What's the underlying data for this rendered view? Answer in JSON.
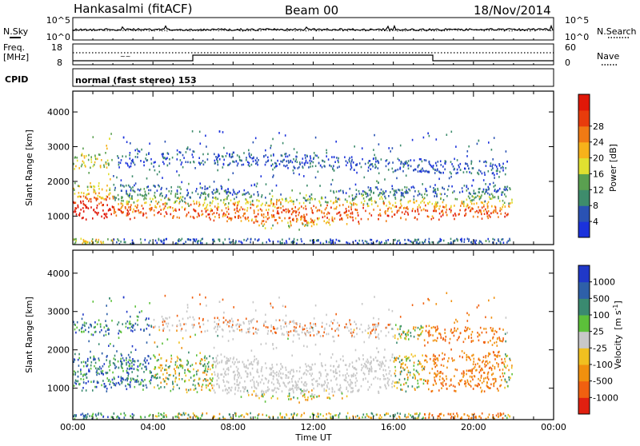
{
  "header": {
    "station": "Hankasalmi (fitACF)",
    "beam": "Beam 00",
    "date": "18/Nov/2014"
  },
  "sky_panel": {
    "left_label": "N.Sky",
    "left_ticks": [
      "10^5",
      "10^0"
    ],
    "right_ticks": [
      "10^5",
      "10^0"
    ],
    "right_label": "N.Search"
  },
  "freq_panel": {
    "left_label_1": "Freq.",
    "left_label_2": "[MHz]",
    "left_ticks": [
      "18",
      "8"
    ],
    "right_ticks": [
      "60",
      "0"
    ],
    "right_label": "Nave"
  },
  "cpid": {
    "label": "CPID",
    "text": "normal (fast stereo) 153"
  },
  "chart_data": [
    {
      "type": "heatmap",
      "title": "",
      "xlabel": "Time UT",
      "ylabel": "Slant Range [km]",
      "x_ticks": [
        "00:00",
        "04:00",
        "08:00",
        "12:00",
        "16:00",
        "20:00",
        "00:00"
      ],
      "xlim_hours": [
        0,
        24
      ],
      "ylim": [
        180,
        4600
      ],
      "y_ticks": [
        1000,
        2000,
        3000,
        4000
      ],
      "colorbar": {
        "label": "Power [dB]",
        "ticks": [
          "4",
          "8",
          "12",
          "16",
          "20",
          "24",
          "28"
        ],
        "range": [
          0,
          30
        ]
      }
    },
    {
      "type": "heatmap",
      "title": "",
      "xlabel": "Time UT",
      "ylabel": "Slant Range [km]",
      "x_ticks": [
        "00:00",
        "04:00",
        "08:00",
        "12:00",
        "16:00",
        "20:00",
        "00:00"
      ],
      "xlim_hours": [
        0,
        24
      ],
      "ylim": [
        180,
        4600
      ],
      "y_ticks": [
        1000,
        2000,
        3000,
        4000
      ],
      "colorbar": {
        "label": "Velocity [m s-1]",
        "label_main": "Velocity",
        "label_unit": "[m s",
        "label_sup": "-1",
        "label_end": "]",
        "ticks": [
          "1000",
          "500",
          "100",
          "25",
          "-25",
          "-100",
          "-500",
          "-1000"
        ]
      }
    }
  ],
  "colors": {
    "power_scale": [
      "#1b32dc",
      "#2a52b4",
      "#3e8c6c",
      "#5aa050",
      "#e0e030",
      "#f7b21a",
      "#f07a14",
      "#e83c0c",
      "#e01808"
    ],
    "velocity_scale": [
      "#2038c8",
      "#2e60a8",
      "#3a8a70",
      "#5cc03a",
      "#c8c8c8",
      "#f0c020",
      "#f0900e",
      "#f06010",
      "#e02010"
    ]
  }
}
